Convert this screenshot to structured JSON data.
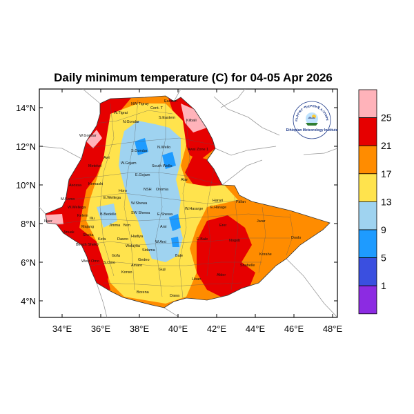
{
  "title": "Daily minimum temperature (C) for 04-05 Apr 2026",
  "logo": {
    "arc_text": "የኢትዮጵያ ሚቲዎሮሎጂ ኢንስቲትዩት",
    "caption": "Ethiopian Meteorology Institute",
    "icon": "meteorology-logo-icon"
  },
  "axes": {
    "lon_ticks": [
      "34°E",
      "36°E",
      "38°E",
      "40°E",
      "42°E",
      "44°E",
      "46°E",
      "48°E"
    ],
    "lat_ticks": [
      "14°N",
      "12°N",
      "10°N",
      "8°N",
      "6°N",
      "4°N"
    ]
  },
  "colorbar": {
    "labels": [
      "25",
      "21",
      "17",
      "13",
      "9",
      "5",
      "1"
    ],
    "colors": [
      "#ffb3ba",
      "#e60000",
      "#ff8c00",
      "#ffe34d",
      "#9fd3f0",
      "#1e9bff",
      "#3a4fe0",
      "#8c2be2"
    ]
  },
  "regions": [
    "Cent. T",
    "Eastern",
    "NW Tigray",
    "S.Eastern",
    "Kilbali",
    "W.Gondar",
    "N.Gondar",
    "W.Tigrai",
    "S.Gondar",
    "N.Wello",
    "W.Gojam",
    "Metekel",
    "Awi",
    "E.Gojam",
    "South Wello",
    "Awsi Zone 1",
    "Kemashi",
    "Horo",
    "NSH",
    "Oromia",
    "Afar",
    "Asossa",
    "E.Wellega",
    "W.Shewa",
    "Harari",
    "Fafan",
    "M.Komo",
    "W.Wellega",
    "Kelem",
    "Illu",
    "Jimma",
    "SW Shewa",
    "E.Shewa",
    "W.Hararge",
    "E.Harage",
    "Nuer",
    "B.Bedelle",
    "Arsi",
    "Jarar",
    "Anuak",
    "Bench Sheko",
    "Kefa",
    "Yem",
    "Hadiya",
    "W.Arsi",
    "Erer",
    "Doolo",
    "Majang",
    "Dawro",
    "Wolayita",
    "E.Bale",
    "Nogob",
    "Sheka",
    "Gofa",
    "Sidama",
    "Bale",
    "Korahe",
    "West Omo",
    "S.Omo",
    "Amaro",
    "Gedeo",
    "Shabelle",
    "Konso",
    "Guji",
    "Liban",
    "Afder",
    "Borena",
    "Dawa"
  ]
}
